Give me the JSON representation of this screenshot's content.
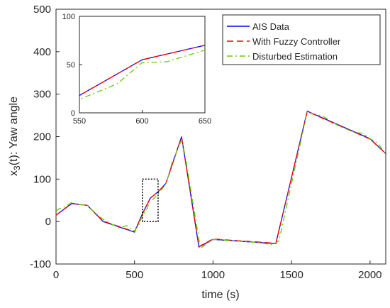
{
  "chart_data": {
    "type": "line",
    "xlabel": "time (s)",
    "ylabel": "x_3(t): Yaw angle",
    "ylabel_parts": {
      "base": "x",
      "sub": "3",
      "rest": "(t): Yaw angle"
    },
    "xlim": [
      0,
      2100
    ],
    "ylim": [
      -100,
      500
    ],
    "xticks": [
      "0",
      "500",
      "1000",
      "1500",
      "2000"
    ],
    "yticks": [
      "-100",
      "0",
      "100",
      "200",
      "300",
      "400",
      "500"
    ],
    "grid": false,
    "legend_position": "top-right",
    "zoom_box": {
      "x": [
        550,
        650
      ],
      "y": [
        0,
        100
      ]
    },
    "series": [
      {
        "name": "AIS Data",
        "color": "#0000ff",
        "style": "solid",
        "x": [
          0,
          100,
          200,
          300,
          500,
          550,
          600,
          650,
          700,
          800,
          910,
          1000,
          1400,
          1600,
          2000,
          2100
        ],
        "y": [
          15,
          42,
          38,
          0,
          -25,
          18,
          55,
          70,
          90,
          200,
          -60,
          -42,
          -52,
          260,
          195,
          160
        ]
      },
      {
        "name": "With Fuzzy Controller",
        "color": "#ff0000",
        "style": "dashed",
        "x": [
          0,
          100,
          200,
          300,
          500,
          550,
          600,
          650,
          700,
          800,
          910,
          1000,
          1400,
          1600,
          2000,
          2100
        ],
        "y": [
          15,
          43,
          38,
          1,
          -24,
          18,
          55,
          70,
          90,
          199,
          -59,
          -41,
          -51,
          259,
          194,
          160
        ]
      },
      {
        "name": "Disturbed Estimation",
        "color": "#66cc00",
        "style": "dashdot",
        "x": [
          0,
          20,
          60,
          100,
          140,
          200,
          250,
          300,
          400,
          450,
          500,
          525,
          550,
          580,
          600,
          620,
          650,
          700,
          740,
          800,
          820,
          920,
          1000,
          1100,
          1200,
          1300,
          1380,
          1420,
          1600,
          1700,
          1800,
          1900,
          1950,
          2000,
          2050,
          2100
        ],
        "y": [
          25,
          30,
          35,
          45,
          40,
          38,
          20,
          5,
          -15,
          -10,
          -22,
          -10,
          14,
          30,
          52,
          53,
          65,
          88,
          140,
          192,
          160,
          -63,
          -42,
          -45,
          -47,
          -50,
          -55,
          -45,
          258,
          248,
          225,
          210,
          208,
          195,
          185,
          158
        ]
      }
    ],
    "inset": {
      "xlim": [
        550,
        650
      ],
      "ylim": [
        0,
        100
      ],
      "xticks": [
        "550",
        "600",
        "650"
      ],
      "yticks": [
        "0",
        "50",
        "100"
      ]
    }
  }
}
